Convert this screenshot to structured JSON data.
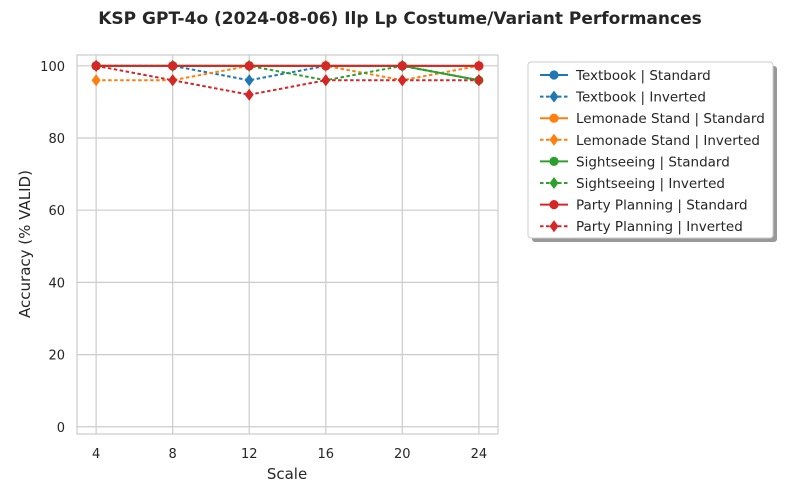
{
  "chart_data": {
    "type": "line",
    "title": "KSP GPT-4o (2024-08-06) Ilp Lp Costume/Variant Performances",
    "xlabel": "Scale",
    "ylabel": "Accuracy (% VALID)",
    "x": [
      4,
      8,
      12,
      16,
      20,
      24
    ],
    "xticks": [
      "4",
      "8",
      "12",
      "16",
      "20",
      "24"
    ],
    "yticks": [
      "0",
      "20",
      "40",
      "60",
      "80",
      "100"
    ],
    "xlim": [
      3,
      25
    ],
    "ylim": [
      -2,
      103
    ],
    "grid": true,
    "legend_position": "outside-right",
    "series": [
      {
        "name": "Textbook | Standard",
        "color": "#1f77b4",
        "style": "solid",
        "marker": "circle",
        "values": [
          100,
          100,
          100,
          100,
          100,
          100
        ]
      },
      {
        "name": "Textbook | Inverted",
        "color": "#1f77b4",
        "style": "dashed",
        "marker": "diamond",
        "values": [
          100,
          100,
          96,
          100,
          100,
          96
        ]
      },
      {
        "name": "Lemonade Stand | Standard",
        "color": "#ff7f0e",
        "style": "solid",
        "marker": "circle",
        "values": [
          100,
          100,
          100,
          100,
          100,
          100
        ]
      },
      {
        "name": "Lemonade Stand | Inverted",
        "color": "#ff7f0e",
        "style": "dashed",
        "marker": "diamond",
        "values": [
          96,
          96,
          100,
          100,
          96,
          100
        ]
      },
      {
        "name": "Sightseeing | Standard",
        "color": "#2ca02c",
        "style": "solid",
        "marker": "circle",
        "values": [
          100,
          100,
          100,
          100,
          100,
          96
        ]
      },
      {
        "name": "Sightseeing | Inverted",
        "color": "#2ca02c",
        "style": "dashed",
        "marker": "diamond",
        "values": [
          100,
          100,
          100,
          96,
          100,
          96
        ]
      },
      {
        "name": "Party Planning | Standard",
        "color": "#d62728",
        "style": "solid",
        "marker": "circle",
        "values": [
          100,
          100,
          100,
          100,
          100,
          100
        ]
      },
      {
        "name": "Party Planning | Inverted",
        "color": "#d62728",
        "style": "dashed",
        "marker": "diamond",
        "values": [
          100,
          96,
          92,
          96,
          96,
          96
        ]
      }
    ]
  }
}
